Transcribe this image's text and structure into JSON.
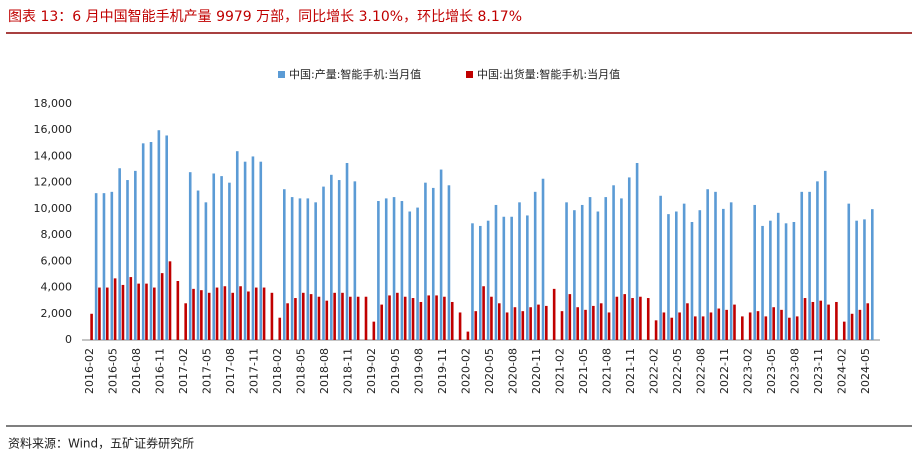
{
  "chart_data": {
    "type": "bar",
    "title": "图表 13：6 月中国智能手机产量 9979 万部，同比增长 3.10%，环比增长 8.17%",
    "source": "资料来源：Wind，五矿证券研究所",
    "categories": [
      "2016-02",
      null,
      null,
      "2016-05",
      null,
      null,
      "2016-08",
      null,
      null,
      "2016-11",
      null,
      null,
      "2017-02",
      null,
      null,
      "2017-05",
      null,
      null,
      "2017-08",
      null,
      null,
      "2017-11",
      null,
      null,
      "2018-02",
      null,
      null,
      "2018-05",
      null,
      null,
      "2018-08",
      null,
      null,
      "2018-11",
      null,
      null,
      "2019-02",
      null,
      null,
      "2019-05",
      null,
      null,
      "2019-08",
      null,
      null,
      "2019-11",
      null,
      null,
      "2020-02",
      null,
      null,
      "2020-05",
      null,
      null,
      "2020-08",
      null,
      null,
      "2020-11",
      null,
      null,
      "2021-02",
      null,
      null,
      "2021-05",
      null,
      null,
      "2021-08",
      null,
      null,
      "2021-11",
      null,
      null,
      "2022-02",
      null,
      null,
      "2022-05",
      null,
      null,
      "2022-08",
      null,
      null,
      "2022-11",
      null,
      null,
      "2023-02",
      null,
      null,
      "2023-05",
      null,
      null,
      "2023-08",
      null,
      null,
      "2023-11",
      null,
      null,
      "2024-02",
      null,
      null,
      "2024-05",
      null
    ],
    "series": [
      {
        "name": "中国:产量:智能手机:当月值",
        "color": "#5b9bd5",
        "values": [
          null,
          11200,
          11200,
          11300,
          13100,
          12200,
          12900,
          15000,
          15100,
          16000,
          15600,
          null,
          null,
          12800,
          11400,
          10500,
          12700,
          12500,
          12000,
          14400,
          13600,
          14000,
          13600,
          null,
          null,
          11500,
          10900,
          10800,
          10800,
          10500,
          11700,
          12600,
          12200,
          13500,
          12100,
          null,
          null,
          10600,
          10800,
          10900,
          10600,
          9800,
          10100,
          12000,
          11600,
          13000,
          11800,
          null,
          null,
          8900,
          8700,
          9100,
          10300,
          9400,
          9400,
          10500,
          9500,
          11300,
          12300,
          null,
          null,
          10500,
          9900,
          10300,
          10900,
          9800,
          10900,
          11800,
          10800,
          12400,
          13500,
          null,
          null,
          11000,
          9600,
          9800,
          10400,
          9000,
          9900,
          11500,
          11300,
          10000,
          10500,
          null,
          null,
          10300,
          8700,
          9100,
          9700,
          8900,
          9000,
          11300,
          11300,
          12100,
          12900,
          null,
          null,
          10400,
          9100,
          9200,
          9979
        ]
      },
      {
        "name": "中国:出货量:智能手机:当月值",
        "color": "#c00000",
        "values": [
          2000,
          4000,
          4000,
          4700,
          4200,
          4800,
          4300,
          4300,
          4000,
          5100,
          6000,
          4500,
          2800,
          3900,
          3800,
          3600,
          4000,
          4100,
          3600,
          4100,
          3700,
          4000,
          4000,
          3600,
          1700,
          2800,
          3200,
          3600,
          3500,
          3300,
          3000,
          3600,
          3600,
          3300,
          3300,
          3300,
          1400,
          2700,
          3400,
          3600,
          3300,
          3200,
          2900,
          3400,
          3400,
          3300,
          2900,
          2100,
          640,
          2200,
          4100,
          3300,
          2800,
          2100,
          2500,
          2200,
          2500,
          2700,
          2600,
          3900,
          2200,
          3500,
          2500,
          2300,
          2600,
          2800,
          2100,
          3300,
          3500,
          3200,
          3300,
          3200,
          1500,
          2100,
          1700,
          2100,
          2800,
          1800,
          1800,
          2100,
          2400,
          2300,
          2700,
          1800,
          2100,
          2200,
          1800,
          2500,
          2300,
          1700,
          1800,
          3200,
          2900,
          3000,
          2700,
          2900,
          1400,
          2000,
          2300,
          2800,
          null
        ]
      }
    ],
    "ylim": [
      0,
      18000
    ],
    "yticks": [
      0,
      {
        "value": 2000,
        "label": "2,000"
      },
      {
        "value": 4000,
        "label": "4,000"
      },
      {
        "value": 6000,
        "label": "6,000"
      },
      {
        "value": 8000,
        "label": "8,000"
      },
      {
        "value": 10000,
        "label": "10,000"
      },
      {
        "value": 12000,
        "label": "12,000"
      },
      {
        "value": 14000,
        "label": "14,000"
      },
      {
        "value": 16000,
        "label": "16,000"
      },
      {
        "value": 18000,
        "label": "18,000"
      }
    ],
    "legend": "top"
  }
}
